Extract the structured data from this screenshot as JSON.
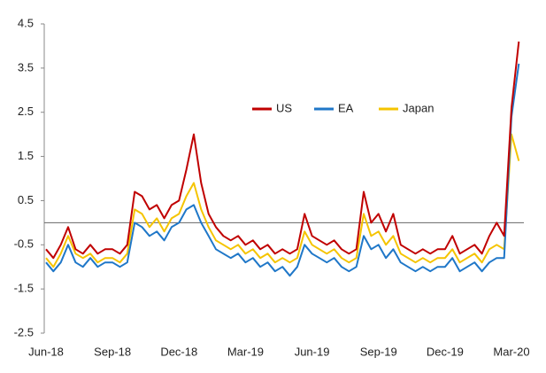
{
  "chart_data": {
    "type": "line",
    "categories": [
      "Jun-18",
      null,
      null,
      null,
      null,
      null,
      null,
      null,
      null,
      "Sep-18",
      null,
      null,
      null,
      null,
      null,
      null,
      null,
      null,
      "Dec-18",
      null,
      null,
      null,
      null,
      null,
      null,
      null,
      null,
      "Mar-19",
      null,
      null,
      null,
      null,
      null,
      null,
      null,
      null,
      "Jun-19",
      null,
      null,
      null,
      null,
      null,
      null,
      null,
      null,
      "Sep-19",
      null,
      null,
      null,
      null,
      null,
      null,
      null,
      null,
      "Dec-19",
      null,
      null,
      null,
      null,
      null,
      null,
      null,
      null,
      "Mar-20",
      null
    ],
    "series": [
      {
        "name": "US",
        "color": "#c00000",
        "values": [
          -0.6,
          -0.8,
          -0.5,
          -0.1,
          -0.6,
          -0.7,
          -0.5,
          -0.7,
          -0.6,
          -0.6,
          -0.7,
          -0.5,
          0.7,
          0.6,
          0.3,
          0.4,
          0.1,
          0.4,
          0.5,
          1.2,
          2.0,
          0.9,
          0.2,
          -0.1,
          -0.3,
          -0.4,
          -0.3,
          -0.5,
          -0.4,
          -0.6,
          -0.5,
          -0.7,
          -0.6,
          -0.7,
          -0.6,
          0.2,
          -0.3,
          -0.4,
          -0.5,
          -0.4,
          -0.6,
          -0.7,
          -0.6,
          0.7,
          0.0,
          0.2,
          -0.2,
          0.2,
          -0.5,
          -0.6,
          -0.7,
          -0.6,
          -0.7,
          -0.6,
          -0.6,
          -0.3,
          -0.7,
          -0.6,
          -0.5,
          -0.7,
          -0.3,
          0.0,
          -0.3,
          2.6,
          4.1
        ]
      },
      {
        "name": "EA",
        "color": "#1f77c8",
        "values": [
          -0.9,
          -1.1,
          -0.9,
          -0.5,
          -0.9,
          -1.0,
          -0.8,
          -1.0,
          -0.9,
          -0.9,
          -1.0,
          -0.9,
          0.0,
          -0.1,
          -0.3,
          -0.2,
          -0.4,
          -0.1,
          0.0,
          0.3,
          0.4,
          0.0,
          -0.3,
          -0.6,
          -0.7,
          -0.8,
          -0.7,
          -0.9,
          -0.8,
          -1.0,
          -0.9,
          -1.1,
          -1.0,
          -1.2,
          -1.0,
          -0.5,
          -0.7,
          -0.8,
          -0.9,
          -0.8,
          -1.0,
          -1.1,
          -1.0,
          -0.3,
          -0.6,
          -0.5,
          -0.8,
          -0.6,
          -0.9,
          -1.0,
          -1.1,
          -1.0,
          -1.1,
          -1.0,
          -1.0,
          -0.8,
          -1.1,
          -1.0,
          -0.9,
          -1.1,
          -0.9,
          -0.8,
          -0.8,
          2.4,
          3.6
        ]
      },
      {
        "name": "Japan",
        "color": "#f5c400",
        "values": [
          -0.8,
          -1.0,
          -0.7,
          -0.3,
          -0.7,
          -0.8,
          -0.7,
          -0.9,
          -0.8,
          -0.8,
          -0.9,
          -0.7,
          0.3,
          0.2,
          -0.1,
          0.1,
          -0.2,
          0.1,
          0.2,
          0.6,
          0.9,
          0.3,
          -0.1,
          -0.4,
          -0.5,
          -0.6,
          -0.5,
          -0.7,
          -0.6,
          -0.8,
          -0.7,
          -0.9,
          -0.8,
          -0.9,
          -0.8,
          -0.2,
          -0.5,
          -0.6,
          -0.7,
          -0.6,
          -0.8,
          -0.9,
          -0.8,
          0.2,
          -0.3,
          -0.2,
          -0.5,
          -0.3,
          -0.7,
          -0.8,
          -0.9,
          -0.8,
          -0.9,
          -0.8,
          -0.8,
          -0.6,
          -0.9,
          -0.8,
          -0.7,
          -0.9,
          -0.6,
          -0.5,
          -0.6,
          2.0,
          1.4
        ]
      }
    ],
    "ylim": [
      -2.5,
      4.5
    ],
    "yticks": [
      4.5,
      3.5,
      2.5,
      1.5,
      0.5,
      -0.5,
      -1.5,
      -2.5
    ],
    "grid": false
  }
}
